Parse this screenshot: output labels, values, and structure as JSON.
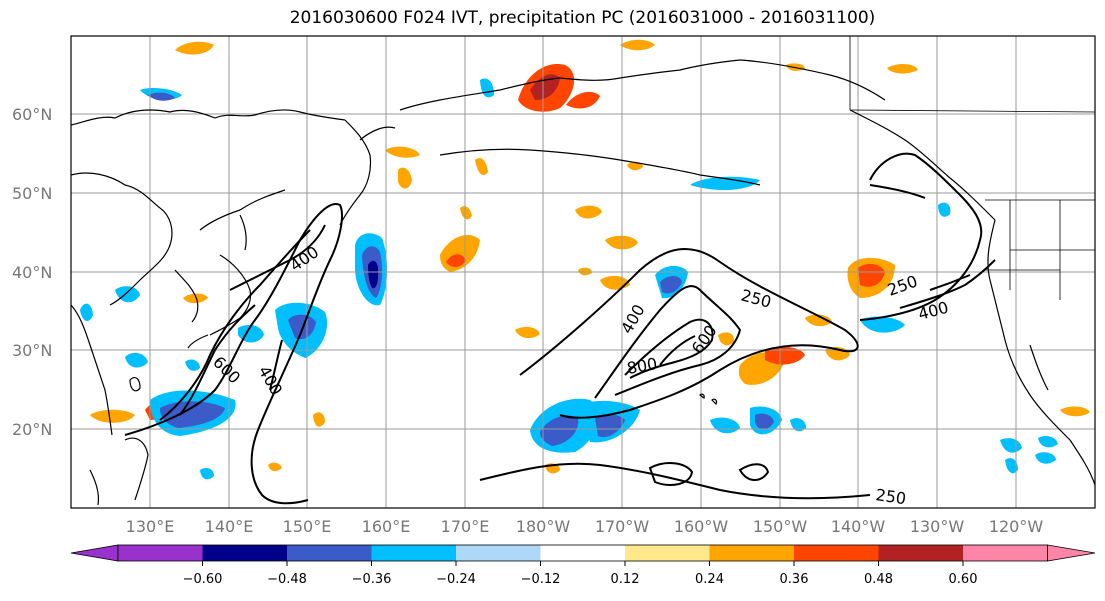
{
  "title": "2016030600 F024 IVT, precipitation PC (2016031000 - 2016031100)",
  "latitude_labels": [
    "60°N",
    "50°N",
    "40°N",
    "30°N",
    "20°N"
  ],
  "longitude_labels": [
    "130°E",
    "140°E",
    "150°E",
    "160°E",
    "170°E",
    "180°W",
    "170°W",
    "160°W",
    "150°W",
    "140°W",
    "130°W",
    "120°W"
  ],
  "colorbar": {
    "colors": [
      "#9932cc",
      "#00008b",
      "#3a5bc8",
      "#00bfff",
      "#add8f8",
      "#ffffff",
      "#ffe98a",
      "#ffa500",
      "#ff4500",
      "#b22222",
      "#ff85a8"
    ],
    "tick_labels": [
      "−0.60",
      "−0.48",
      "−0.36",
      "−0.24",
      "−0.12",
      "0.12",
      "0.24",
      "0.36",
      "0.48",
      "0.60"
    ]
  },
  "contour_labels": [
    "250",
    "400",
    "600",
    "800"
  ],
  "icons": [
    "coastline-map",
    "ivt-contours",
    "precip-pc-fill",
    "colorbar"
  ]
}
